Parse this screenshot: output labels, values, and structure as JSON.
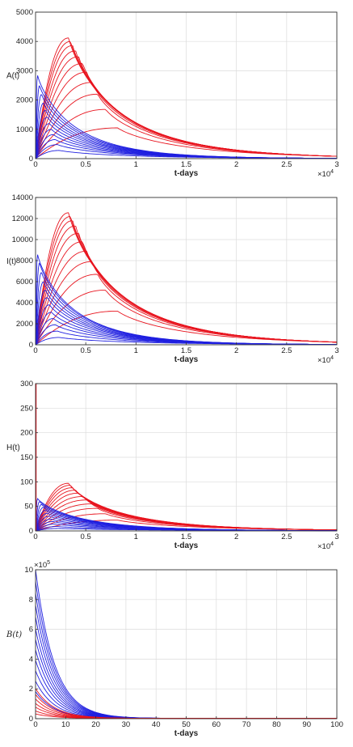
{
  "colors": {
    "series_a": "#e8141e",
    "series_b": "#1f1fe0",
    "grid": "#dcdcdc",
    "axis": "#333333"
  },
  "chart_data": [
    {
      "type": "line",
      "ylabel": "A(t)",
      "xlabel": "t-days",
      "x_exponent_label": "×10",
      "x_exponent_power": "4",
      "xlim": [
        0,
        3
      ],
      "ylim": [
        0,
        5000
      ],
      "xticks": [
        "0",
        "0.5",
        "1",
        "1.5",
        "2",
        "2.5",
        "3"
      ],
      "yticks": [
        "0",
        "1000",
        "2000",
        "3000",
        "4000",
        "5000"
      ],
      "grid": true,
      "x_in_units_of_1e4_days": true,
      "series": [
        {
          "color_role": "series_a",
          "curves": [
            {
              "peak_x": 0.82,
              "peak_y": 1050
            },
            {
              "peak_x": 0.7,
              "peak_y": 1680
            },
            {
              "peak_x": 0.62,
              "peak_y": 2200
            },
            {
              "peak_x": 0.56,
              "peak_y": 2600
            },
            {
              "peak_x": 0.51,
              "peak_y": 2950
            },
            {
              "peak_x": 0.47,
              "peak_y": 3250
            },
            {
              "peak_x": 0.43,
              "peak_y": 3480
            },
            {
              "peak_x": 0.4,
              "peak_y": 3680
            },
            {
              "peak_x": 0.37,
              "peak_y": 3860
            },
            {
              "peak_x": 0.35,
              "peak_y": 4000
            },
            {
              "peak_x": 0.33,
              "peak_y": 4120
            }
          ],
          "tail_end_y": 80
        },
        {
          "color_role": "series_b",
          "curves": [
            {
              "peak_x": 0.02,
              "peak_y": 2850
            },
            {
              "peak_x": 0.04,
              "peak_y": 2500
            },
            {
              "peak_x": 0.06,
              "peak_y": 2200
            },
            {
              "peak_x": 0.08,
              "peak_y": 1900
            },
            {
              "peak_x": 0.1,
              "peak_y": 1650
            },
            {
              "peak_x": 0.12,
              "peak_y": 1420
            },
            {
              "peak_x": 0.14,
              "peak_y": 1200
            },
            {
              "peak_x": 0.16,
              "peak_y": 1000
            },
            {
              "peak_x": 0.18,
              "peak_y": 820
            },
            {
              "peak_x": 0.2,
              "peak_y": 650
            },
            {
              "peak_x": 0.22,
              "peak_y": 480
            },
            {
              "peak_x": 0.24,
              "peak_y": 280
            }
          ],
          "tail_end_y": 10
        }
      ]
    },
    {
      "type": "line",
      "ylabel": "I(t)",
      "xlabel": "t-days",
      "x_exponent_label": "×10",
      "x_exponent_power": "4",
      "xlim": [
        0,
        3
      ],
      "ylim": [
        0,
        14000
      ],
      "xticks": [
        "0",
        "0.5",
        "1",
        "1.5",
        "2",
        "2.5",
        "3"
      ],
      "yticks": [
        "0",
        "2000",
        "4000",
        "6000",
        "8000",
        "10000",
        "12000",
        "14000"
      ],
      "grid": true,
      "series": [
        {
          "color_role": "series_a",
          "curves": [
            {
              "peak_x": 0.82,
              "peak_y": 3200
            },
            {
              "peak_x": 0.7,
              "peak_y": 5200
            },
            {
              "peak_x": 0.62,
              "peak_y": 6700
            },
            {
              "peak_x": 0.56,
              "peak_y": 7900
            },
            {
              "peak_x": 0.51,
              "peak_y": 8900
            },
            {
              "peak_x": 0.47,
              "peak_y": 9800
            },
            {
              "peak_x": 0.43,
              "peak_y": 10600
            },
            {
              "peak_x": 0.4,
              "peak_y": 11300
            },
            {
              "peak_x": 0.37,
              "peak_y": 11800
            },
            {
              "peak_x": 0.35,
              "peak_y": 12200
            },
            {
              "peak_x": 0.33,
              "peak_y": 12550
            }
          ],
          "tail_end_y": 250
        },
        {
          "color_role": "series_b",
          "curves": [
            {
              "peak_x": 0.02,
              "peak_y": 8600
            },
            {
              "peak_x": 0.04,
              "peak_y": 7800
            },
            {
              "peak_x": 0.06,
              "peak_y": 6900
            },
            {
              "peak_x": 0.08,
              "peak_y": 6000
            },
            {
              "peak_x": 0.1,
              "peak_y": 5200
            },
            {
              "peak_x": 0.12,
              "peak_y": 4500
            },
            {
              "peak_x": 0.14,
              "peak_y": 3800
            },
            {
              "peak_x": 0.16,
              "peak_y": 3100
            },
            {
              "peak_x": 0.18,
              "peak_y": 2500
            },
            {
              "peak_x": 0.2,
              "peak_y": 1900
            },
            {
              "peak_x": 0.22,
              "peak_y": 1300
            },
            {
              "peak_x": 0.24,
              "peak_y": 700
            }
          ],
          "tail_end_y": 30
        }
      ]
    },
    {
      "type": "line",
      "ylabel": "H(t)",
      "xlabel": "t-days",
      "x_exponent_label": "×10",
      "x_exponent_power": "4",
      "xlim": [
        0,
        3
      ],
      "ylim": [
        0,
        300
      ],
      "xticks": [
        "0",
        "0.5",
        "1",
        "1.5",
        "2",
        "2.5",
        "3"
      ],
      "yticks": [
        "0",
        "50",
        "100",
        "150",
        "200",
        "250",
        "300"
      ],
      "grid": true,
      "initial_spike_y": 300,
      "series": [
        {
          "color_role": "series_a",
          "curves": [
            {
              "peak_x": 0.82,
              "peak_y": 22
            },
            {
              "peak_x": 0.7,
              "peak_y": 35
            },
            {
              "peak_x": 0.62,
              "peak_y": 46
            },
            {
              "peak_x": 0.56,
              "peak_y": 55
            },
            {
              "peak_x": 0.51,
              "peak_y": 63
            },
            {
              "peak_x": 0.47,
              "peak_y": 70
            },
            {
              "peak_x": 0.43,
              "peak_y": 77
            },
            {
              "peak_x": 0.4,
              "peak_y": 83
            },
            {
              "peak_x": 0.37,
              "peak_y": 88
            },
            {
              "peak_x": 0.35,
              "peak_y": 93
            },
            {
              "peak_x": 0.33,
              "peak_y": 97
            }
          ],
          "tail_end_y": 2
        },
        {
          "color_role": "series_b",
          "curves": [
            {
              "peak_x": 0.02,
              "peak_y": 66
            },
            {
              "peak_x": 0.04,
              "peak_y": 60
            },
            {
              "peak_x": 0.06,
              "peak_y": 54
            },
            {
              "peak_x": 0.08,
              "peak_y": 48
            },
            {
              "peak_x": 0.1,
              "peak_y": 42
            },
            {
              "peak_x": 0.12,
              "peak_y": 36
            },
            {
              "peak_x": 0.14,
              "peak_y": 30
            },
            {
              "peak_x": 0.16,
              "peak_y": 24
            },
            {
              "peak_x": 0.18,
              "peak_y": 19
            },
            {
              "peak_x": 0.2,
              "peak_y": 14
            },
            {
              "peak_x": 0.22,
              "peak_y": 9
            },
            {
              "peak_x": 0.24,
              "peak_y": 5
            }
          ],
          "tail_end_y": 0
        }
      ]
    },
    {
      "type": "line",
      "ylabel": "B(t)",
      "xlabel": "t-days",
      "y_exponent_label": "×10",
      "y_exponent_power": "5",
      "xlim": [
        0,
        100
      ],
      "ylim": [
        0,
        10
      ],
      "xticks": [
        "0",
        "10",
        "20",
        "30",
        "40",
        "50",
        "60",
        "70",
        "80",
        "90",
        "100"
      ],
      "yticks": [
        "0",
        "2",
        "4",
        "6",
        "8",
        "10"
      ],
      "grid": true,
      "y_in_units_of_1e5": true,
      "series": [
        {
          "color_role": "series_b",
          "decay_initial_values": [
            10,
            9.2,
            8.4,
            7.6,
            6.8,
            6.0,
            5.3,
            4.6,
            3.9,
            3.2,
            2.5,
            1.8
          ],
          "decay_rate": 0.16
        },
        {
          "color_role": "series_a",
          "decay_initial_values": [
            2.0,
            1.6,
            1.3,
            1.0,
            0.75,
            0.5,
            0.3
          ],
          "decay_rate": 0.16
        }
      ]
    }
  ]
}
